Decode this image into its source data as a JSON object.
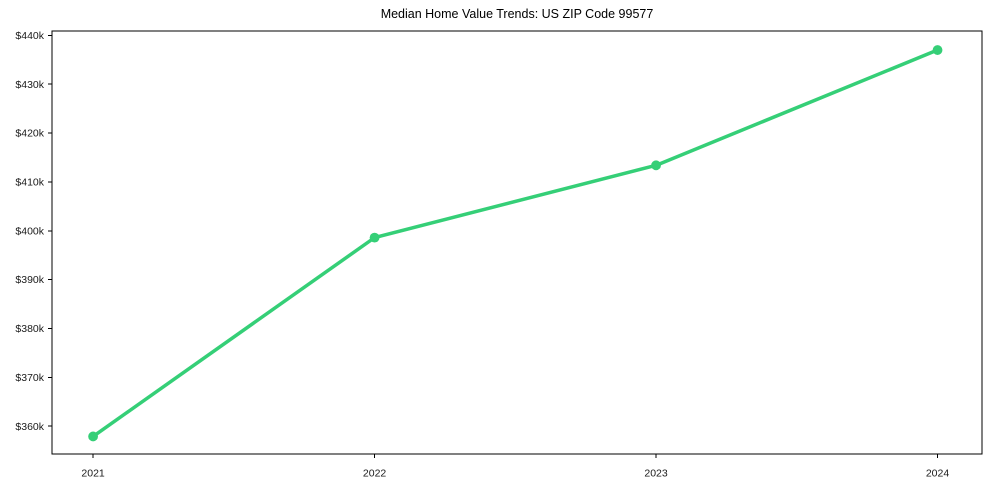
{
  "chart_data": {
    "type": "line",
    "title": "Median Home Value Trends: US ZIP Code 99577",
    "x": [
      2021,
      2022,
      2023,
      2024
    ],
    "series": [
      {
        "name": "Median Home Value",
        "values": [
          357900,
          398600,
          413400,
          437000
        ]
      }
    ],
    "x_tick_labels": [
      "2021",
      "2022",
      "2023",
      "2024"
    ],
    "y_ticks": [
      {
        "value": 360000,
        "label": "$360k"
      },
      {
        "value": 370000,
        "label": "$370k"
      },
      {
        "value": 380000,
        "label": "$380k"
      },
      {
        "value": 390000,
        "label": "$390k"
      },
      {
        "value": 400000,
        "label": "$400k"
      },
      {
        "value": 410000,
        "label": "$410k"
      },
      {
        "value": 420000,
        "label": "$420k"
      },
      {
        "value": 430000,
        "label": "$430k"
      },
      {
        "value": 440000,
        "label": "$440k"
      }
    ],
    "xlim": [
      2020.854,
      2024.158
    ],
    "ylim": [
      354300,
      440900
    ],
    "grid": false,
    "legend": null,
    "line_color": "#35cf77",
    "marker": "circle",
    "axis_color": "#000000",
    "tick_label_color": "#1a1a1a",
    "background_color": "#ffffff"
  }
}
